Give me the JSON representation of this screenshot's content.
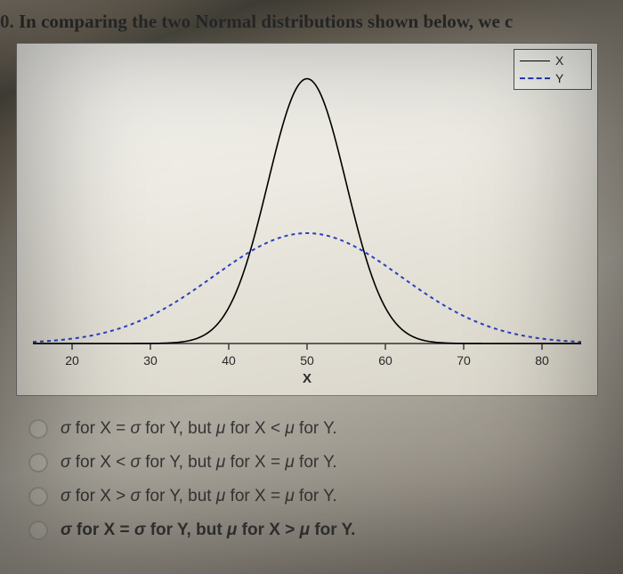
{
  "question": {
    "number_fragment": "0.",
    "text": "In comparing the two Normal distributions shown below, we c"
  },
  "legend": {
    "x_label": "X",
    "y_label": "Y"
  },
  "chart": {
    "type": "line",
    "background_color": "#edeae2",
    "axis_color": "#333333",
    "xlim": [
      15,
      85
    ],
    "ylim": [
      0,
      0.085
    ],
    "xticks": [
      20,
      30,
      40,
      50,
      60,
      70,
      80
    ],
    "xlabel": "X",
    "axis_fontsize": 14,
    "label_fontsize": 15,
    "series": {
      "X": {
        "mu": 50,
        "sigma": 5,
        "color": "#000000",
        "line_width": 1.6,
        "dash": "none"
      },
      "Y": {
        "mu": 50,
        "sigma": 12,
        "color": "#2a3fbe",
        "line_width": 2,
        "dash": "4,4"
      }
    }
  },
  "options": [
    {
      "sigma": "σ for X = σ for Y",
      "mu": "μ for X < μ for Y",
      "join": ", but ",
      "bold": false
    },
    {
      "sigma": "σ for X < σ for Y",
      "mu": "μ for X = μ for Y",
      "join": ", but ",
      "bold": false
    },
    {
      "sigma": "σ for X > σ for Y",
      "mu": "μ for X = μ for Y",
      "join": ", but ",
      "bold": false
    },
    {
      "sigma": "σ for X = σ for Y",
      "mu": "μ for X > μ for Y",
      "join": ", but ",
      "bold": true
    }
  ],
  "colors": {
    "text": "#2f2f2f",
    "series_x": "#000000",
    "series_y": "#2a3fbe",
    "panel_border": "#777777",
    "radio_border": "#9a968b"
  }
}
